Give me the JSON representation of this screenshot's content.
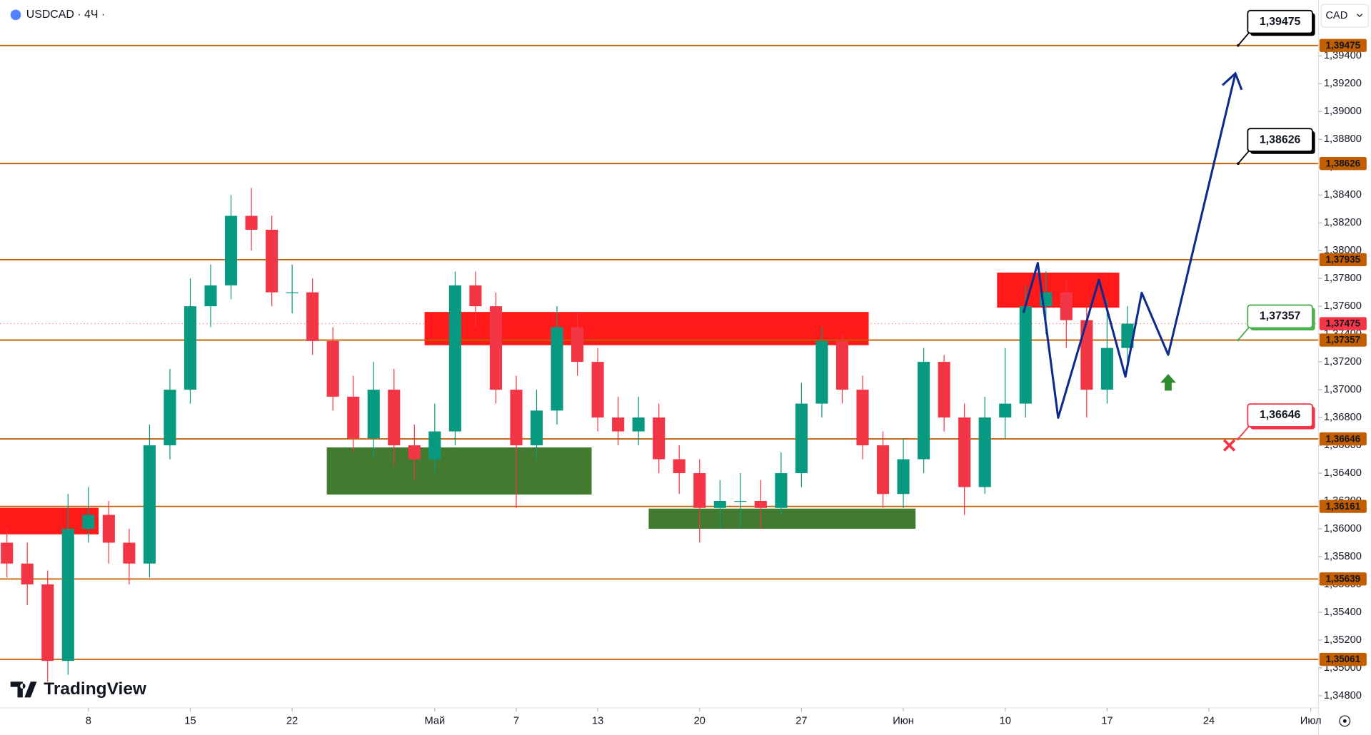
{
  "chart_data": {
    "type": "candlestick",
    "title": "USDCAD · 4Ч ·",
    "currency": "CAD",
    "brand": "TradingView",
    "xlim": [
      -0.34,
      64.38
    ],
    "ylim": [
      1.34712,
      1.39802
    ],
    "xticks": [
      {
        "value": 4,
        "label": "8"
      },
      {
        "value": 9,
        "label": "15"
      },
      {
        "value": 14,
        "label": "22"
      },
      {
        "value": 21,
        "label": "Май"
      },
      {
        "value": 25,
        "label": "7"
      },
      {
        "value": 29,
        "label": "13"
      },
      {
        "value": 34,
        "label": "20"
      },
      {
        "value": 39,
        "label": "27"
      },
      {
        "value": 44,
        "label": "Июн"
      },
      {
        "value": 49,
        "label": "10"
      },
      {
        "value": 54,
        "label": "17"
      },
      {
        "value": 59,
        "label": "24"
      },
      {
        "value": 64,
        "label": "Июл"
      }
    ],
    "yticks": [
      {
        "value": 1.348,
        "label": "1,34800"
      },
      {
        "value": 1.35,
        "label": "1,35000"
      },
      {
        "value": 1.352,
        "label": "1,35200"
      },
      {
        "value": 1.354,
        "label": "1,35400"
      },
      {
        "value": 1.356,
        "label": "1,35600"
      },
      {
        "value": 1.358,
        "label": "1,35800"
      },
      {
        "value": 1.36,
        "label": "1,36000"
      },
      {
        "value": 1.362,
        "label": "1,36200"
      },
      {
        "value": 1.364,
        "label": "1,36400"
      },
      {
        "value": 1.366,
        "label": "1,36600"
      },
      {
        "value": 1.368,
        "label": "1,36800"
      },
      {
        "value": 1.37,
        "label": "1,37000"
      },
      {
        "value": 1.372,
        "label": "1,37200"
      },
      {
        "value": 1.374,
        "label": "1,37400"
      },
      {
        "value": 1.376,
        "label": "1,37600"
      },
      {
        "value": 1.378,
        "label": "1,37800"
      },
      {
        "value": 1.38,
        "label": "1,38000"
      },
      {
        "value": 1.382,
        "label": "1,38200"
      },
      {
        "value": 1.384,
        "label": "1,38400"
      },
      {
        "value": 1.386,
        "label": "1,38600"
      },
      {
        "value": 1.388,
        "label": "1,38800"
      },
      {
        "value": 1.39,
        "label": "1,39000"
      },
      {
        "value": 1.392,
        "label": "1,39200"
      },
      {
        "value": 1.394,
        "label": "1,39400"
      }
    ],
    "grid": false,
    "up_color": "#089981",
    "down_color": "#f23645",
    "x": [
      0,
      1,
      2,
      3,
      4,
      5,
      6,
      7,
      8,
      9,
      10,
      11,
      12,
      13,
      14,
      15,
      16,
      17,
      18,
      19,
      20,
      21,
      22,
      23,
      24,
      25,
      26,
      27,
      28,
      29,
      30,
      31,
      32,
      33,
      34,
      35,
      36,
      37,
      38,
      39,
      40,
      41,
      42,
      43,
      44,
      45,
      46,
      47,
      48,
      49,
      50,
      51,
      52,
      53,
      54,
      55
    ],
    "open": [
      1.359,
      1.3575,
      1.356,
      1.3505,
      1.36,
      1.361,
      1.359,
      1.3575,
      1.366,
      1.37,
      1.376,
      1.3775,
      1.3825,
      1.3815,
      1.377,
      1.377,
      1.3735,
      1.3695,
      1.3665,
      1.37,
      1.366,
      1.365,
      1.367,
      1.3775,
      1.376,
      1.37,
      1.366,
      1.3685,
      1.3745,
      1.372,
      1.368,
      1.367,
      1.368,
      1.365,
      1.364,
      1.3615,
      1.362,
      1.362,
      1.3615,
      1.364,
      1.369,
      1.3735,
      1.37,
      1.366,
      1.3625,
      1.365,
      1.372,
      1.368,
      1.363,
      1.368,
      1.369,
      1.376,
      1.377,
      1.375,
      1.37,
      1.373
    ],
    "high": [
      1.36,
      1.359,
      1.357,
      1.3625,
      1.363,
      1.362,
      1.36,
      1.3675,
      1.3715,
      1.378,
      1.379,
      1.384,
      1.3845,
      1.3825,
      1.379,
      1.378,
      1.3745,
      1.371,
      1.372,
      1.3715,
      1.3675,
      1.369,
      1.3785,
      1.3785,
      1.377,
      1.371,
      1.37,
      1.376,
      1.3755,
      1.373,
      1.3695,
      1.3695,
      1.369,
      1.366,
      1.365,
      1.3635,
      1.364,
      1.3635,
      1.3655,
      1.3705,
      1.3745,
      1.374,
      1.371,
      1.367,
      1.3665,
      1.373,
      1.3725,
      1.369,
      1.3695,
      1.373,
      1.3775,
      1.3785,
      1.378,
      1.376,
      1.3765,
      1.376
    ],
    "low": [
      1.3565,
      1.3545,
      1.349,
      1.3495,
      1.359,
      1.3575,
      1.356,
      1.3565,
      1.365,
      1.369,
      1.3745,
      1.3765,
      1.38,
      1.376,
      1.3755,
      1.3725,
      1.3685,
      1.3655,
      1.365,
      1.3645,
      1.3635,
      1.364,
      1.366,
      1.3745,
      1.369,
      1.3615,
      1.365,
      1.3675,
      1.371,
      1.367,
      1.366,
      1.366,
      1.364,
      1.3625,
      1.359,
      1.36,
      1.36,
      1.36,
      1.361,
      1.363,
      1.368,
      1.369,
      1.365,
      1.3615,
      1.3615,
      1.364,
      1.367,
      1.361,
      1.3625,
      1.3665,
      1.368,
      1.374,
      1.373,
      1.368,
      1.369,
      1.3715
    ],
    "close": [
      1.3575,
      1.356,
      1.3505,
      1.36,
      1.361,
      1.359,
      1.3575,
      1.366,
      1.37,
      1.376,
      1.3775,
      1.3825,
      1.3815,
      1.377,
      1.377,
      1.3735,
      1.3695,
      1.3665,
      1.37,
      1.366,
      1.365,
      1.367,
      1.3775,
      1.376,
      1.37,
      1.366,
      1.3685,
      1.3745,
      1.372,
      1.368,
      1.367,
      1.368,
      1.365,
      1.364,
      1.3615,
      1.362,
      1.362,
      1.3615,
      1.364,
      1.369,
      1.3735,
      1.37,
      1.366,
      1.3625,
      1.365,
      1.372,
      1.368,
      1.363,
      1.368,
      1.369,
      1.376,
      1.377,
      1.375,
      1.37,
      1.373,
      1.37475
    ],
    "level_color": "#c25e00",
    "levels": [
      {
        "value": 1.39475,
        "label": "1,39475"
      },
      {
        "value": 1.38626,
        "label": "1,38626"
      },
      {
        "value": 1.37935,
        "label": "1,37935"
      },
      {
        "value": 1.37357,
        "label": "1,37357"
      },
      {
        "value": 1.36646,
        "label": "1,36646"
      },
      {
        "value": 1.36161,
        "label": "1,36161"
      },
      {
        "value": 1.35639,
        "label": "1,35639"
      },
      {
        "value": 1.35061,
        "label": "1,35061"
      }
    ],
    "last_price": {
      "value": 1.37475,
      "label": "1,37475",
      "color": "#f23645"
    },
    "targets": [
      {
        "value": 1.39475,
        "label": "1,39475",
        "color": "#000000"
      },
      {
        "value": 1.38626,
        "label": "1,38626",
        "color": "#000000"
      },
      {
        "value": 1.37357,
        "label": "1,37357",
        "color": "#4caf50"
      },
      {
        "value": 1.36646,
        "label": "1,36646",
        "color": "#f23645"
      }
    ],
    "zones": [
      {
        "x": [
          -0.34,
          4.5
        ],
        "y": [
          1.3596,
          1.36151
        ],
        "color": "#ff0000"
      },
      {
        "x": [
          20.5,
          42.3
        ],
        "y": [
          1.3732,
          1.37559
        ],
        "color": "#ff0000"
      },
      {
        "x": [
          48.6,
          54.6
        ],
        "y": [
          1.3759,
          1.37842
        ],
        "color": "#ff0000"
      },
      {
        "x": [
          15.7,
          28.7
        ],
        "y": [
          1.36246,
          1.36585
        ],
        "color": "#2e6b1a"
      },
      {
        "x": [
          31.5,
          44.6
        ],
        "y": [
          1.36,
          1.36145
        ],
        "color": "#2e6b1a"
      }
    ],
    "projection": {
      "color": "#0d2a8c",
      "x": [
        49.9,
        50.6,
        51.6,
        53.6,
        54.9,
        55.7,
        57.0,
        60.3
      ],
      "values": [
        1.37553,
        1.37911,
        1.36798,
        1.37791,
        1.37094,
        1.37697,
        1.37251,
        1.39274
      ]
    },
    "buy_signal": {
      "x": 57.0,
      "value": 1.3705,
      "color": "#2e8b2e"
    },
    "stop_signal": {
      "x": 60.0,
      "value": 1.366,
      "color": "#f23645"
    }
  }
}
